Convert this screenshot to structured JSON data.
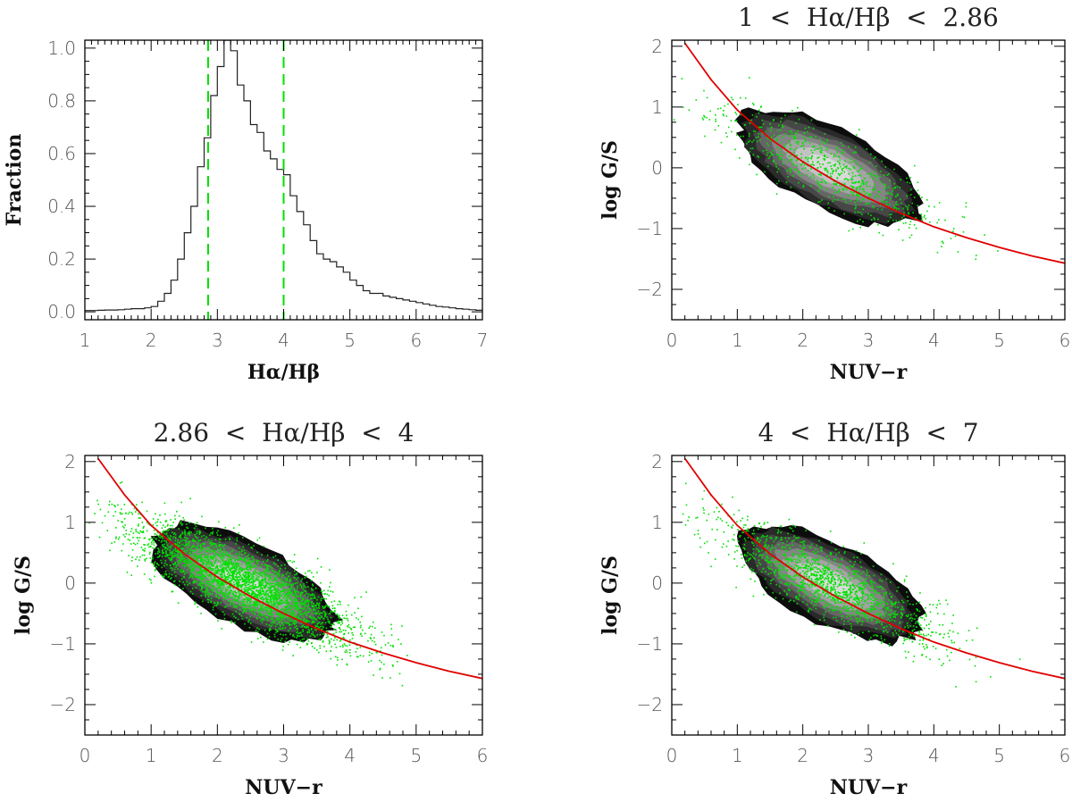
{
  "chart_data": [
    {
      "id": "hist",
      "type": "histogram",
      "title": "",
      "xlabel": "Hα/Hβ",
      "ylabel": "Fraction",
      "xlim": [
        1,
        7
      ],
      "ylim": [
        -0.03,
        1.03
      ],
      "xticks": [
        1,
        2,
        3,
        4,
        5,
        6,
        7
      ],
      "xtick_labels": [
        "1",
        "2",
        "3",
        "4",
        "5",
        "6",
        "7"
      ],
      "yticks": [
        0,
        0.2,
        0.4,
        0.6,
        0.8,
        1.0
      ],
      "ytick_labels": [
        "0.0",
        "0.2",
        "0.4",
        "0.6",
        "0.8",
        "1.0"
      ],
      "bins": {
        "x": [
          1.0,
          1.1,
          1.2,
          1.3,
          1.4,
          1.5,
          1.6,
          1.7,
          1.8,
          1.9,
          2.0,
          2.1,
          2.2,
          2.3,
          2.4,
          2.5,
          2.6,
          2.7,
          2.8,
          2.9,
          3.0,
          3.1,
          3.2,
          3.3,
          3.4,
          3.5,
          3.6,
          3.7,
          3.8,
          3.9,
          4.0,
          4.1,
          4.2,
          4.3,
          4.4,
          4.5,
          4.6,
          4.7,
          4.8,
          4.9,
          5.0,
          5.1,
          5.2,
          5.3,
          5.4,
          5.5,
          5.6,
          5.7,
          5.8,
          5.9,
          6.0,
          6.1,
          6.2,
          6.3,
          6.4,
          6.5,
          6.6,
          6.7,
          6.8,
          6.9,
          7.0
        ],
        "y": [
          0.005,
          0.005,
          0.006,
          0.007,
          0.007,
          0.008,
          0.01,
          0.012,
          0.012,
          0.015,
          0.02,
          0.04,
          0.07,
          0.12,
          0.2,
          0.3,
          0.4,
          0.55,
          0.66,
          0.82,
          0.93,
          1.03,
          0.99,
          0.86,
          0.8,
          0.71,
          0.68,
          0.61,
          0.58,
          0.54,
          0.52,
          0.44,
          0.38,
          0.33,
          0.27,
          0.22,
          0.2,
          0.19,
          0.17,
          0.15,
          0.12,
          0.1,
          0.08,
          0.07,
          0.07,
          0.06,
          0.055,
          0.05,
          0.045,
          0.04,
          0.035,
          0.03,
          0.025,
          0.02,
          0.018,
          0.015,
          0.012,
          0.01,
          0.008,
          0.006
        ]
      },
      "reference_lines": [
        {
          "x": 2.86,
          "style": "dashed",
          "color": "#00e000"
        },
        {
          "x": 4.0,
          "style": "dashed",
          "color": "#00e000"
        }
      ]
    },
    {
      "id": "sc1",
      "type": "scatter",
      "title": "1  <  Hα/Hβ  <  2.86",
      "xlabel": "NUV−r",
      "ylabel": "log G/S",
      "xlim": [
        0,
        6
      ],
      "ylim": [
        -2.5,
        2.1
      ],
      "xticks": [
        0,
        1,
        2,
        3,
        4,
        5,
        6
      ],
      "xtick_labels": [
        "0",
        "1",
        "2",
        "3",
        "4",
        "5",
        "6"
      ],
      "yticks": [
        -2,
        -1,
        0,
        1,
        2
      ],
      "ytick_labels": [
        "−2",
        "−1",
        "0",
        "1",
        "2"
      ],
      "density_center": [
        2.4,
        0.0
      ],
      "fit_curve": {
        "color": "#e00000",
        "x": [
          0.2,
          0.6,
          1.0,
          1.5,
          2.0,
          2.5,
          3.0,
          3.5,
          4.0,
          4.5,
          5.0,
          5.5,
          6.0
        ],
        "y": [
          2.05,
          1.45,
          0.95,
          0.48,
          0.1,
          -0.22,
          -0.5,
          -0.75,
          -0.97,
          -1.15,
          -1.31,
          -1.45,
          -1.57
        ]
      },
      "points": {
        "color": "#00e000",
        "n": 750,
        "seed": 11,
        "spread": 0.62
      }
    },
    {
      "id": "sc2",
      "type": "scatter",
      "title": "2.86  <  Hα/Hβ  <  4",
      "xlabel": "NUV−r",
      "ylabel": "log G/S",
      "xlim": [
        0,
        6
      ],
      "ylim": [
        -2.5,
        2.1
      ],
      "xticks": [
        0,
        1,
        2,
        3,
        4,
        5,
        6
      ],
      "xtick_labels": [
        "0",
        "1",
        "2",
        "3",
        "4",
        "5",
        "6"
      ],
      "yticks": [
        -2,
        -1,
        0,
        1,
        2
      ],
      "ytick_labels": [
        "−2",
        "−1",
        "0",
        "1",
        "2"
      ],
      "density_center": [
        2.4,
        0.0
      ],
      "fit_curve": {
        "color": "#e00000",
        "x": [
          0.2,
          0.6,
          1.0,
          1.5,
          2.0,
          2.5,
          3.0,
          3.5,
          4.0,
          4.5,
          5.0,
          5.5,
          6.0
        ],
        "y": [
          2.05,
          1.45,
          0.95,
          0.48,
          0.1,
          -0.22,
          -0.5,
          -0.75,
          -0.97,
          -1.15,
          -1.31,
          -1.45,
          -1.57
        ]
      },
      "points": {
        "color": "#00e000",
        "n": 3200,
        "seed": 23,
        "spread": 0.62
      }
    },
    {
      "id": "sc3",
      "type": "scatter",
      "title": "4  <  Hα/Hβ  <  7",
      "xlabel": "NUV−r",
      "ylabel": "log G/S",
      "xlim": [
        0,
        6
      ],
      "ylim": [
        -2.5,
        2.1
      ],
      "xticks": [
        0,
        1,
        2,
        3,
        4,
        5,
        6
      ],
      "xtick_labels": [
        "0",
        "1",
        "2",
        "3",
        "4",
        "5",
        "6"
      ],
      "yticks": [
        -2,
        -1,
        0,
        1,
        2
      ],
      "ytick_labels": [
        "−2",
        "−1",
        "0",
        "1",
        "2"
      ],
      "density_center": [
        2.4,
        0.0
      ],
      "fit_curve": {
        "color": "#e00000",
        "x": [
          0.2,
          0.6,
          1.0,
          1.5,
          2.0,
          2.5,
          3.0,
          3.5,
          4.0,
          4.5,
          5.0,
          5.5,
          6.0
        ],
        "y": [
          2.05,
          1.45,
          0.95,
          0.48,
          0.1,
          -0.22,
          -0.5,
          -0.75,
          -0.97,
          -1.15,
          -1.31,
          -1.45,
          -1.57
        ]
      },
      "points": {
        "color": "#00e000",
        "n": 1500,
        "seed": 37,
        "spread": 0.62
      }
    }
  ]
}
